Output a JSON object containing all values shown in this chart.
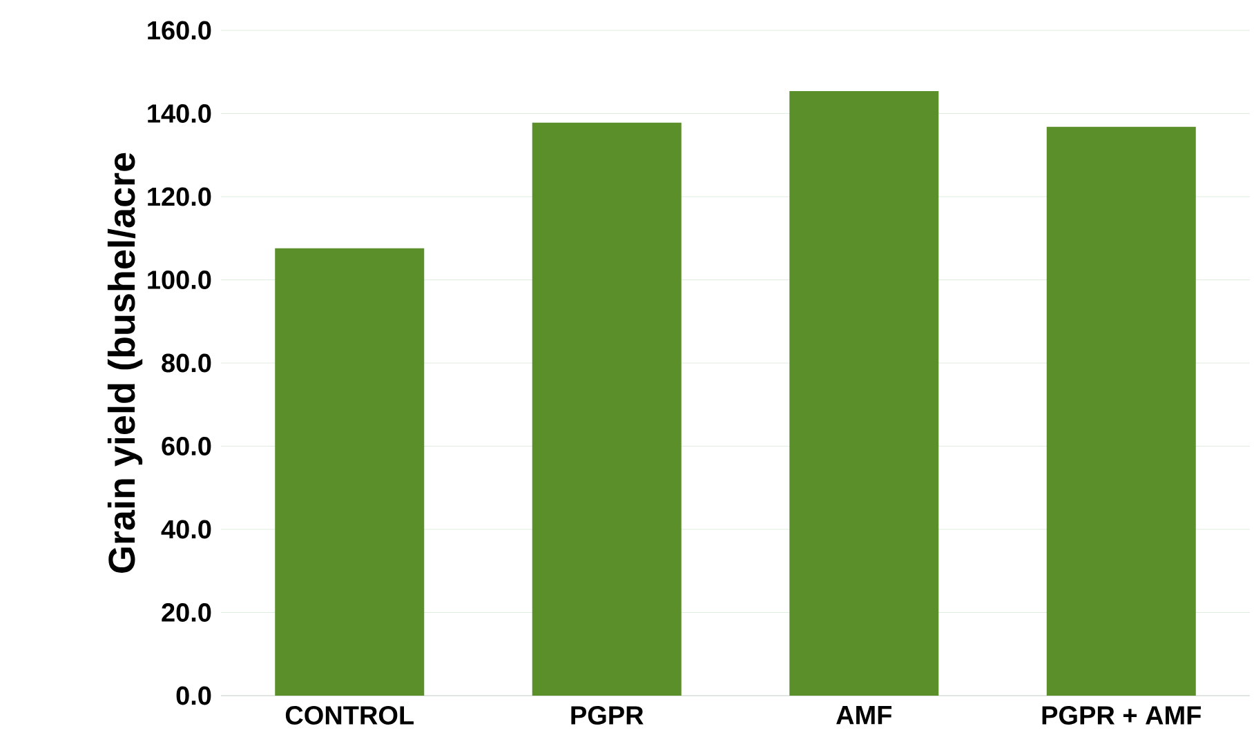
{
  "chart_data": {
    "type": "bar",
    "ylabel": "Grain yield (bushel/acre",
    "categories": [
      "CONTROL",
      "PGPR",
      "AMF",
      "PGPR + AMF"
    ],
    "values": [
      107.6,
      137.8,
      145.4,
      136.8
    ],
    "color": "#5a8f29",
    "ylim": [
      0,
      160
    ],
    "yticks": [
      {
        "value": 0,
        "label": "0.0"
      },
      {
        "value": 20,
        "label": "20.0"
      },
      {
        "value": 40,
        "label": "40.0"
      },
      {
        "value": 60,
        "label": "60.0"
      },
      {
        "value": 80,
        "label": "80.0"
      },
      {
        "value": 100,
        "label": "100.0"
      },
      {
        "value": 120,
        "label": "120.0"
      },
      {
        "value": 140,
        "label": "140.0"
      },
      {
        "value": 160,
        "label": "160.0"
      }
    ],
    "grid": "y"
  }
}
